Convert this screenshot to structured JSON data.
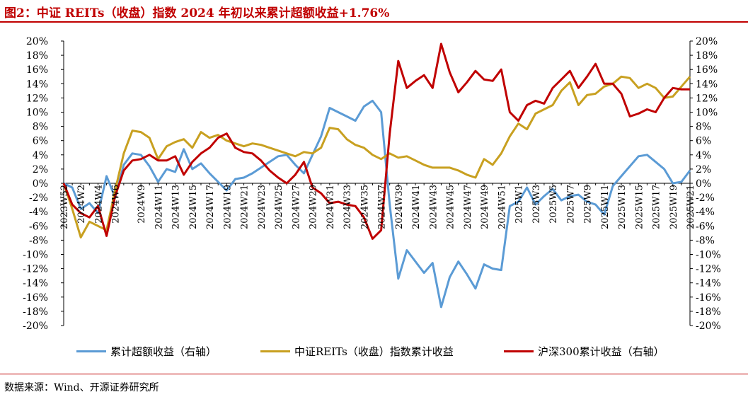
{
  "title": "图2：中证 REITs（收盘）指数 2024 年初以来累计超额收益+1.76%",
  "source": "数据来源：Wind、开源证券研究所",
  "chart_data": {
    "type": "line",
    "x": [
      "2023W52",
      "2024W1",
      "2024W2",
      "2024W3",
      "2024W4",
      "2024W5",
      "2024W6",
      "2024W7",
      "2024W8",
      "2024W9",
      "2024W10",
      "2024W11",
      "2024W12",
      "2024W13",
      "2024W14",
      "2024W15",
      "2024W16",
      "2024W17",
      "2024W18",
      "2024W19",
      "2024W20",
      "2024W21",
      "2024W22",
      "2024W23",
      "2024W24",
      "2024W25",
      "2024W26",
      "2024W27",
      "2024W28",
      "2024W29",
      "2024W30",
      "2024W31",
      "2024W32",
      "2024W33",
      "2024W34",
      "2024W35",
      "2024W36",
      "2024W37",
      "2024W38",
      "2024W39",
      "2024W40",
      "2024W41",
      "2024W42",
      "2024W43",
      "2024W44",
      "2024W45",
      "2024W46",
      "2024W47",
      "2024W48",
      "2024W49",
      "2024W50",
      "2024W51",
      "2024W52",
      "2025W1",
      "2025W2",
      "2025W3",
      "2025W4",
      "2025W5",
      "2025W6",
      "2025W7",
      "2025W8",
      "2025W9",
      "2025W10",
      "2025W11",
      "2025W12",
      "2025W13",
      "2025W14",
      "2025W15",
      "2025W16",
      "2025W17",
      "2025W18",
      "2025W19",
      "2025W20",
      "2025W21"
    ],
    "x_tick_labels": [
      "2023W52",
      "2024W2",
      "2024W4",
      "2024W6",
      "2024W9",
      "2024W11",
      "2024W13",
      "2024W15",
      "2024W17",
      "2024W19",
      "2024W21",
      "2024W23",
      "2024W25",
      "2024W27",
      "2024W29",
      "2024W31",
      "2024W33",
      "2024W35",
      "2024W37",
      "2024W39",
      "2024W41",
      "2024W43",
      "2024W45",
      "2024W47",
      "2024W49",
      "2024W51",
      "2025W1",
      "2025W3",
      "2025W5",
      "2025W7",
      "2025W9",
      "2025W11",
      "2025W13",
      "2025W15",
      "2025W17",
      "2025W19",
      "2025W21"
    ],
    "ylim": [
      -20,
      20
    ],
    "yticks": [
      "20%",
      "18%",
      "16%",
      "14%",
      "12%",
      "10%",
      "8%",
      "6%",
      "4%",
      "2%",
      "0%",
      "-2%",
      "-4%",
      "-6%",
      "-8%",
      "-10%",
      "-12%",
      "-14%",
      "-16%",
      "-18%",
      "-20%"
    ],
    "grid": false,
    "legend_position": "bottom",
    "series": [
      {
        "name": "累计超额收益（右轴）",
        "color": "#5b9bd5",
        "axis": "right",
        "values": [
          0,
          -0.6,
          -3.6,
          -2.8,
          -4.2,
          1.0,
          -2.0,
          2.6,
          4.2,
          4.0,
          2.4,
          0.2,
          2.0,
          1.6,
          4.8,
          2.0,
          2.8,
          1.4,
          0.2,
          -1.0,
          0.6,
          0.8,
          1.4,
          2.2,
          3.0,
          3.8,
          4.0,
          2.6,
          1.4,
          4.0,
          6.6,
          10.6,
          10.0,
          9.4,
          8.8,
          10.8,
          11.6,
          10.0,
          -3.0,
          -13.4,
          -9.4,
          -11.0,
          -12.6,
          -11.2,
          -17.4,
          -13.2,
          -11.0,
          -12.8,
          -14.8,
          -11.4,
          -12.0,
          -12.2,
          -3.2,
          -2.6,
          -0.6,
          -3.0,
          -1.8,
          -0.8,
          -2.4,
          -1.8,
          -1.6,
          -2.6,
          -3.0,
          -4.4,
          -0.4,
          1.0,
          2.4,
          3.8,
          4.0,
          3.0,
          2.0,
          0.0,
          0.2,
          1.8
        ]
      },
      {
        "name": "中证REITs（收盘）指数累计收益",
        "color": "#c8a020",
        "axis": "left",
        "values": [
          0,
          -3.6,
          -7.6,
          -5.4,
          -6.0,
          -6.6,
          -1.0,
          4.2,
          7.4,
          7.2,
          6.4,
          3.4,
          5.2,
          5.8,
          6.2,
          5.0,
          7.2,
          6.4,
          6.8,
          6.0,
          5.6,
          5.2,
          5.6,
          5.4,
          5.0,
          4.6,
          4.2,
          3.8,
          4.4,
          4.2,
          5.0,
          7.8,
          7.6,
          6.2,
          5.4,
          5.0,
          4.0,
          3.4,
          4.2,
          3.6,
          3.8,
          3.2,
          2.6,
          2.2,
          2.2,
          2.2,
          1.8,
          1.2,
          0.8,
          3.4,
          2.6,
          4.2,
          6.6,
          8.4,
          7.6,
          9.8,
          10.4,
          11.0,
          13.0,
          14.2,
          11.0,
          12.4,
          12.6,
          13.6,
          14.0,
          15.0,
          14.8,
          13.4,
          14.0,
          13.4,
          12.0,
          12.2,
          13.6,
          15.0
        ]
      },
      {
        "name": "沪深300累计收益（右轴）",
        "color": "#c00000",
        "axis": "right",
        "values": [
          0,
          -3.0,
          -4.2,
          -4.8,
          -3.2,
          -7.4,
          -1.8,
          1.8,
          3.2,
          3.4,
          4.0,
          3.2,
          3.2,
          3.8,
          1.2,
          3.0,
          4.2,
          5.0,
          6.4,
          7.0,
          5.0,
          4.4,
          4.2,
          3.2,
          1.8,
          0.8,
          0.0,
          1.2,
          3.0,
          -0.6,
          -1.4,
          -2.8,
          -2.6,
          -3.0,
          -3.2,
          -4.8,
          -7.8,
          -6.6,
          7.0,
          17.2,
          13.4,
          14.4,
          15.2,
          13.4,
          19.6,
          15.6,
          12.8,
          14.2,
          15.8,
          14.6,
          14.4,
          16.0,
          10.0,
          8.8,
          11.0,
          11.6,
          11.2,
          13.4,
          14.6,
          15.8,
          13.4,
          15.0,
          16.8,
          14.0,
          14.0,
          12.6,
          9.4,
          9.8,
          10.4,
          10.0,
          12.0,
          13.4,
          13.2,
          13.2
        ]
      }
    ]
  }
}
